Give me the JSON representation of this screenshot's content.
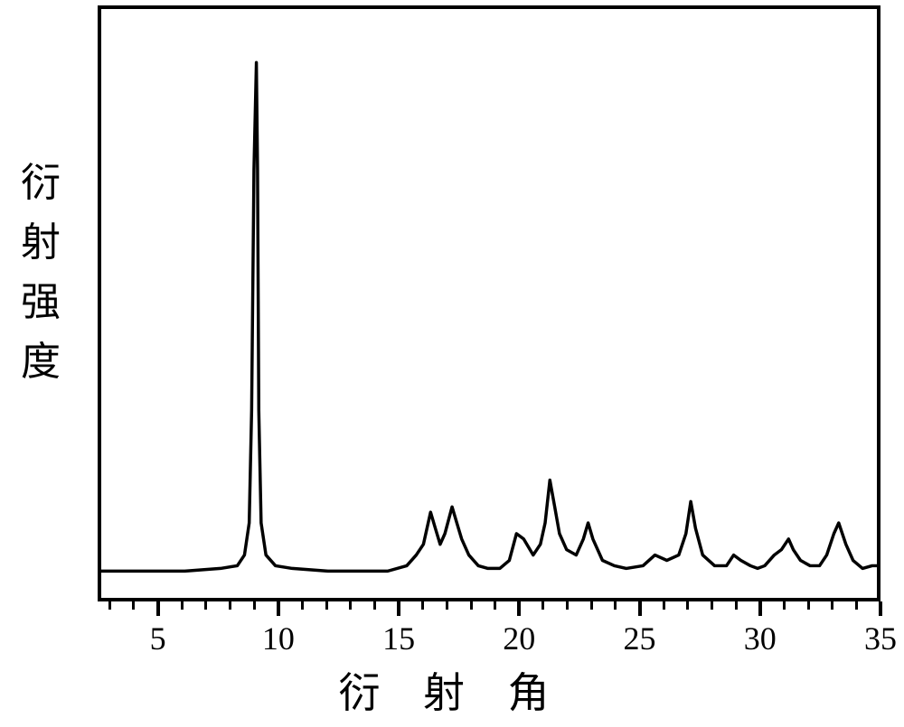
{
  "chart": {
    "type": "line",
    "xlabel": "衍 射 角",
    "ylabel_chars": [
      "衍",
      "射",
      "强",
      "度"
    ],
    "axis_color": "#000000",
    "line_color": "#000000",
    "line_width": 3.5,
    "background_color": "#ffffff",
    "border_width": 4,
    "title_fontsize": 46,
    "label_fontsize": 44,
    "tick_fontsize": 36,
    "xlim": [
      2.5,
      35
    ],
    "ylim": [
      0,
      110
    ],
    "xtick_major": [
      5,
      10,
      15,
      20,
      25,
      30,
      35
    ],
    "xtick_minor_step": 1,
    "xtick_minor_start": 3,
    "xtick_minor_end": 35,
    "series": {
      "x": [
        2.5,
        4.0,
        6.0,
        7.5,
        8.2,
        8.5,
        8.7,
        8.8,
        8.9,
        9.0,
        9.05,
        9.1,
        9.2,
        9.4,
        9.8,
        10.5,
        12.0,
        13.5,
        14.5,
        15.3,
        15.7,
        16.0,
        16.3,
        16.5,
        16.7,
        16.9,
        17.2,
        17.4,
        17.6,
        17.9,
        18.1,
        18.3,
        18.7,
        19.2,
        19.6,
        19.9,
        20.2,
        20.6,
        20.9,
        21.1,
        21.3,
        21.5,
        21.7,
        22.0,
        22.4,
        22.7,
        22.9,
        23.1,
        23.5,
        24.0,
        24.5,
        25.2,
        25.7,
        26.2,
        26.7,
        27.0,
        27.2,
        27.4,
        27.7,
        28.2,
        28.7,
        29.0,
        29.3,
        29.7,
        30.0,
        30.3,
        30.7,
        31.0,
        31.3,
        31.5,
        31.8,
        32.2,
        32.6,
        32.9,
        33.2,
        33.4,
        33.7,
        34.0,
        34.4,
        34.8,
        35.0
      ],
      "y": [
        5,
        5,
        5,
        5.5,
        6,
        8,
        14,
        35,
        80,
        100,
        80,
        35,
        14,
        8,
        6,
        5.5,
        5,
        5,
        5,
        6,
        8,
        10,
        16,
        13,
        10,
        12,
        17,
        14,
        11,
        8,
        7,
        6,
        5.5,
        5.5,
        7,
        12,
        11,
        8,
        10,
        14,
        22,
        17,
        12,
        9,
        8,
        11,
        14,
        11,
        7,
        6,
        5.5,
        6,
        8,
        7,
        8,
        12,
        18,
        13,
        8,
        6,
        6,
        8,
        7,
        6,
        5.5,
        6,
        8,
        9,
        11,
        9,
        7,
        6,
        6,
        8,
        12,
        14,
        10,
        7,
        5.5,
        6,
        6
      ]
    }
  }
}
